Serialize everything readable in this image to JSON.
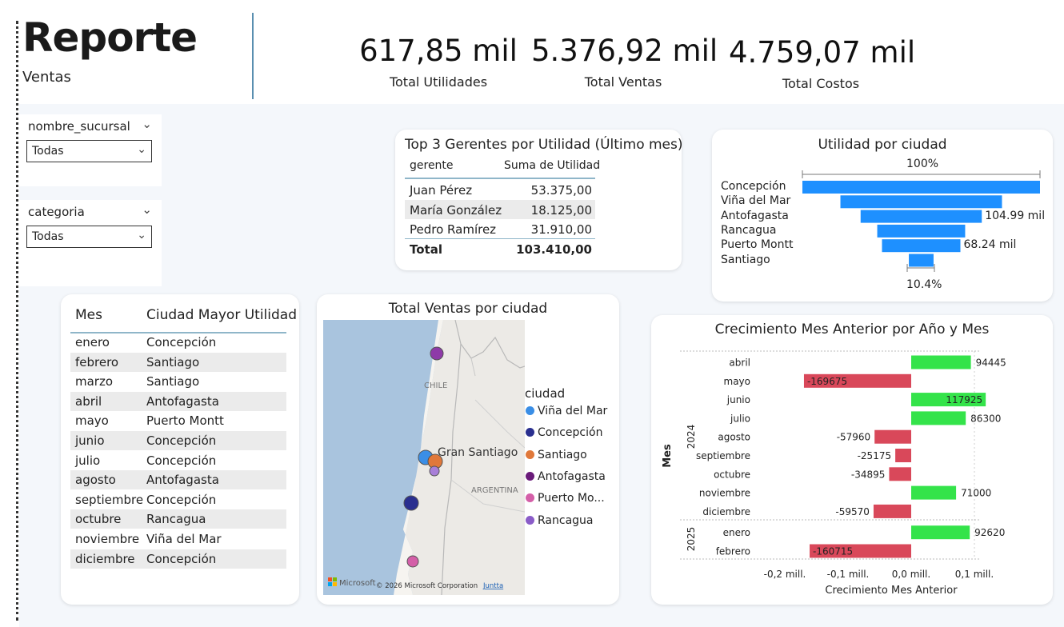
{
  "header": {
    "title": "Reporte",
    "subtitle": "Ventas"
  },
  "kpis": [
    {
      "value": "617,85 mil",
      "label": "Total Utilidades"
    },
    {
      "value": "5.376,92 mil",
      "label": "Total Ventas"
    },
    {
      "value": "4.759,07 mil",
      "label": "Total Costos"
    }
  ],
  "slicers": [
    {
      "label": "nombre_sucursal",
      "value": "Todas"
    },
    {
      "label": "categoria",
      "value": "Todas"
    }
  ],
  "top_gerentes": {
    "title": "Top 3 Gerentes por Utilidad (Último mes)",
    "headers": [
      "gerente",
      "Suma de Utilidad"
    ],
    "rows": [
      [
        "Juan Pérez",
        "53.375,00"
      ],
      [
        "María González",
        "18.125,00"
      ],
      [
        "Pedro Ramírez",
        "31.910,00"
      ]
    ],
    "total": [
      "Total",
      "103.410,00"
    ]
  },
  "funnel": {
    "title": "Utilidad por ciudad",
    "top_label": "100%",
    "bottom_label": "10.4%",
    "cities": [
      "Concepción",
      "Viña del Mar",
      "Antofagasta",
      "Rancagua",
      "Puerto Montt",
      "Santiago"
    ],
    "relative": [
      1.0,
      0.68,
      0.51,
      0.37,
      0.33,
      0.104
    ],
    "value_labels": [
      "",
      "",
      "104.99 mil",
      "",
      "68.24 mil",
      ""
    ],
    "color": "#1e90ff"
  },
  "mes_table": {
    "headers": [
      "Mes",
      "Ciudad Mayor Utilidad"
    ],
    "rows": [
      [
        "enero",
        "Concepción"
      ],
      [
        "febrero",
        "Santiago"
      ],
      [
        "marzo",
        "Santiago"
      ],
      [
        "abril",
        "Antofagasta"
      ],
      [
        "mayo",
        "Puerto Montt"
      ],
      [
        "junio",
        "Concepción"
      ],
      [
        "julio",
        "Concepción"
      ],
      [
        "agosto",
        "Antofagasta"
      ],
      [
        "septiembre",
        "Concepción"
      ],
      [
        "octubre",
        "Rancagua"
      ],
      [
        "noviembre",
        "Viña del Mar"
      ],
      [
        "diciembre",
        "Concepción"
      ]
    ]
  },
  "map": {
    "title": "Total Ventas por ciudad",
    "country_label": "CHILE",
    "neighbor_label": "ARGENTINA",
    "city_label": "Gran Santiago",
    "attribution": "© 2026 Microsoft Corporation",
    "brand": "Microsoft",
    "link": "Juntta",
    "legend_title": "ciudad",
    "legend": [
      {
        "name": "Viña del Mar",
        "color": "#3a8ee6"
      },
      {
        "name": "Concepción",
        "color": "#2a2f8f"
      },
      {
        "name": "Santiago",
        "color": "#e0783a"
      },
      {
        "name": "Antofagasta",
        "color": "#6a1b7a"
      },
      {
        "name": "Puerto Mo...",
        "color": "#d45fa8"
      },
      {
        "name": "Rancagua",
        "color": "#8a5cc8"
      }
    ]
  },
  "chart_data": {
    "type": "bar",
    "orientation": "horizontal",
    "title": "Crecimiento Mes Anterior por Año y Mes",
    "xlabel": "Crecimiento Mes Anterior",
    "ylabel": "Mes",
    "xlim": [
      -0.2,
      0.1
    ],
    "x_unit": "mill.",
    "x_ticks": [
      "-0,2 mill.",
      "-0,1 mill.",
      "0,0 mill.",
      "0,1 mill."
    ],
    "groups": [
      {
        "year": "2024",
        "categories": [
          "abril",
          "mayo",
          "junio",
          "julio",
          "agosto",
          "septiembre",
          "octubre",
          "noviembre",
          "diciembre"
        ]
      },
      {
        "year": "2025",
        "categories": [
          "enero",
          "febrero"
        ]
      }
    ],
    "categories": [
      "abril",
      "mayo",
      "junio",
      "julio",
      "agosto",
      "septiembre",
      "octubre",
      "noviembre",
      "diciembre",
      "enero",
      "febrero"
    ],
    "values": [
      94445,
      -169675,
      117925,
      86300,
      -57960,
      -25175,
      -34895,
      71000,
      -59570,
      92620,
      -160715
    ],
    "positive_color": "#34e34a",
    "negative_color": "#d9485a"
  }
}
